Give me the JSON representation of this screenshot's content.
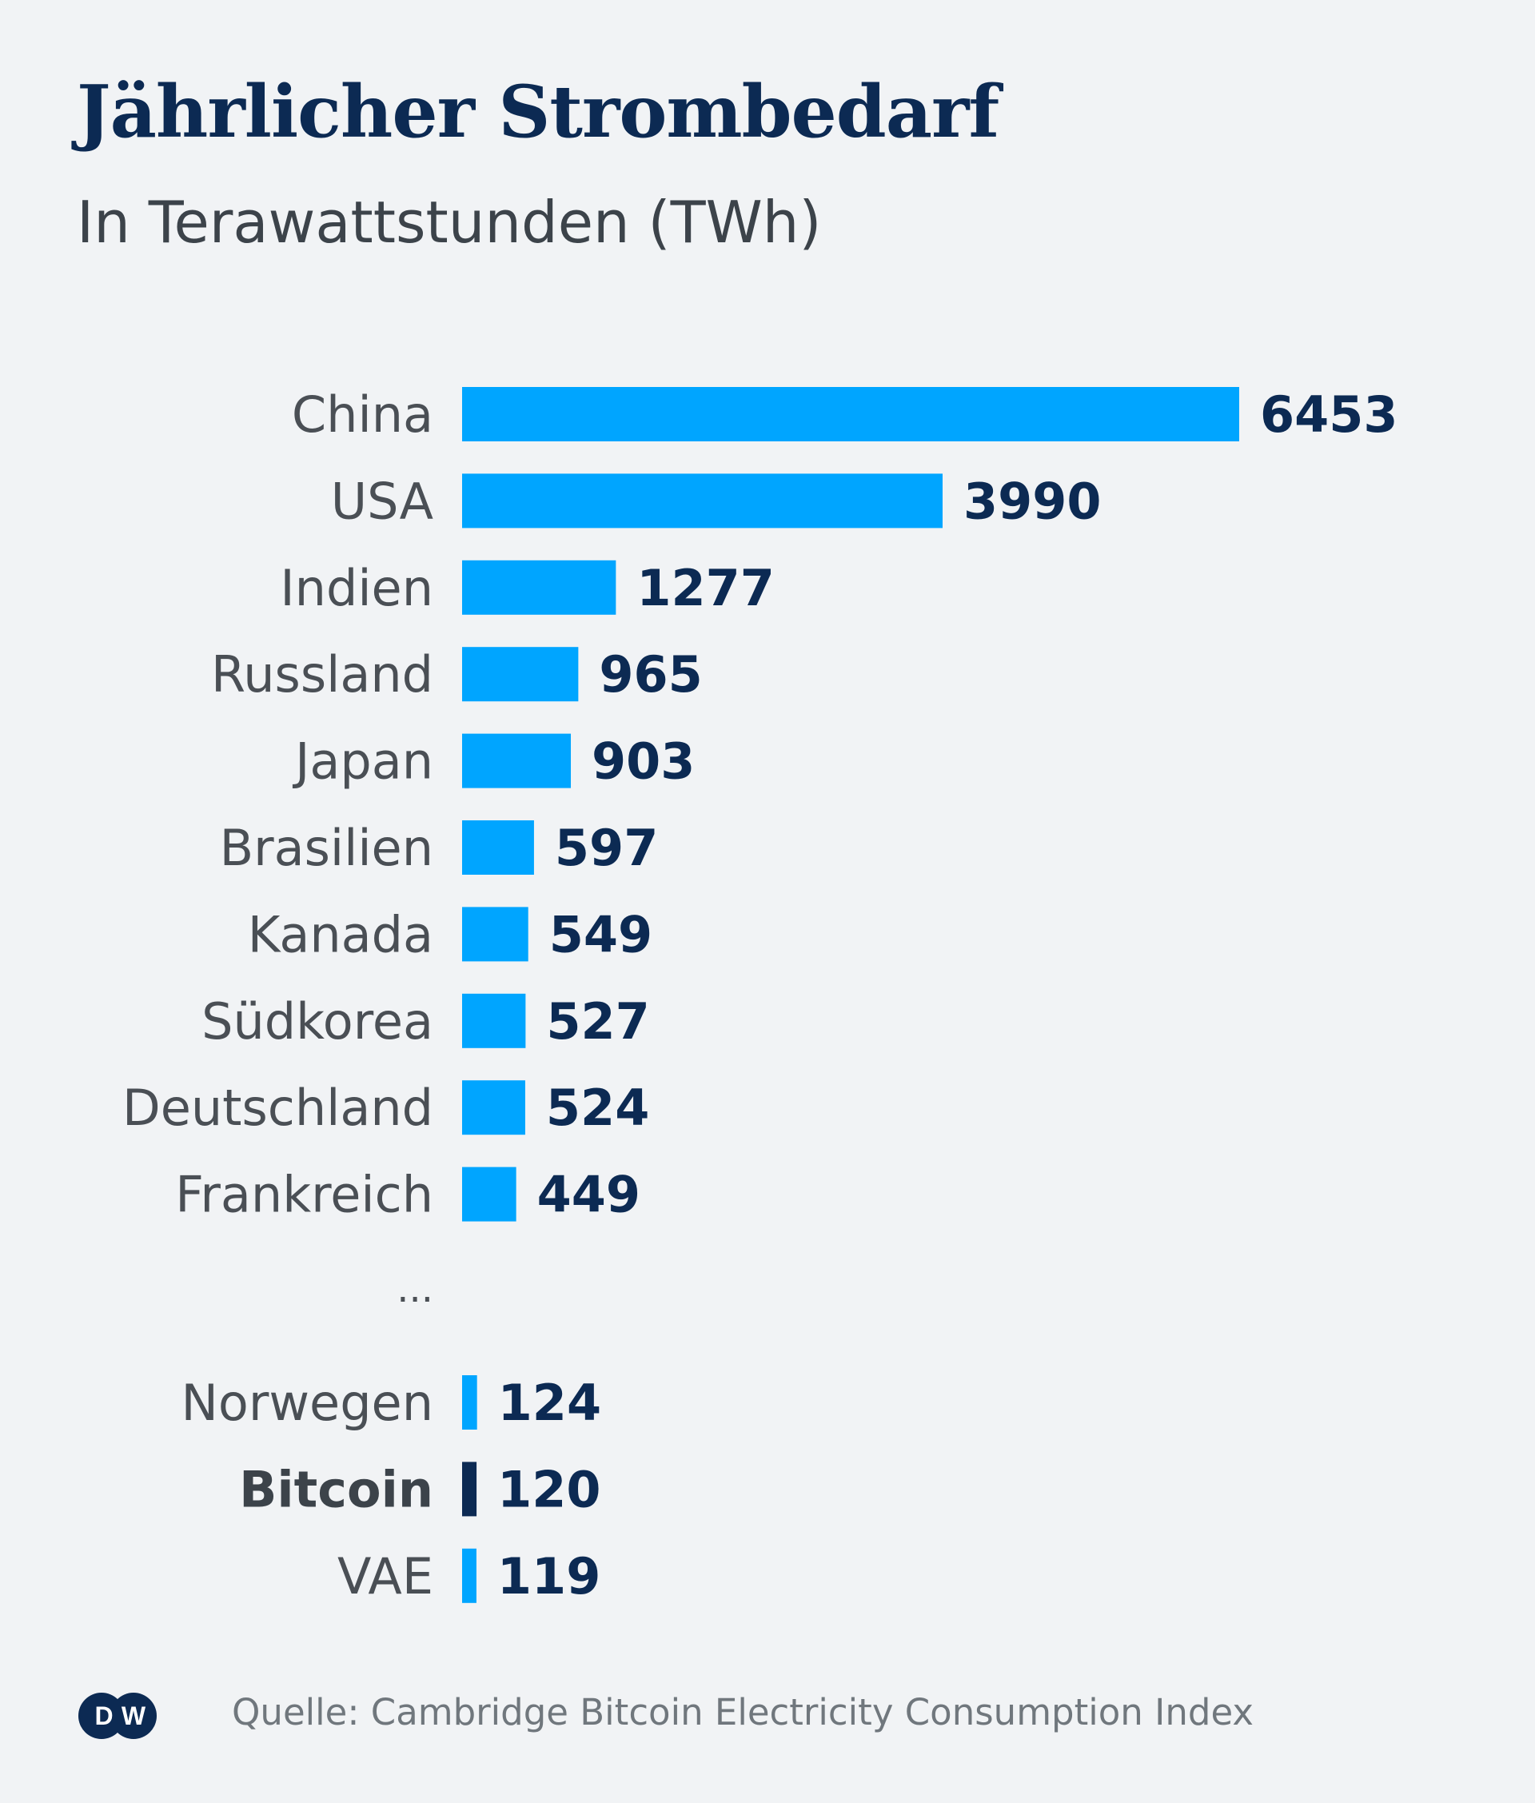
{
  "header": {
    "title": "Jährlicher Strombedarf",
    "subtitle": "In Terawattstunden (TWh)"
  },
  "chart_data": {
    "type": "bar",
    "orientation": "horizontal",
    "title": "Jährlicher Strombedarf",
    "subtitle": "In Terawattstunden (TWh)",
    "categories": [
      "China",
      "USA",
      "Indien",
      "Russland",
      "Japan",
      "Brasilien",
      "Kanada",
      "Südkorea",
      "Deutschland",
      "Frankreich",
      "Norwegen",
      "Bitcoin",
      "VAE"
    ],
    "values": [
      6453,
      3990,
      1277,
      965,
      903,
      597,
      549,
      527,
      524,
      449,
      124,
      120,
      119
    ],
    "highlight": "Bitcoin",
    "gap_marker": "...",
    "gap_after": "Frankreich",
    "grid": false,
    "legend": "none",
    "colors": {
      "bar": "#00a5ff",
      "highlight_bar": "#0c2a53",
      "value_text": "#0c2a53",
      "category_text": "#4a4f55"
    }
  },
  "footer": {
    "logo_text": "DW",
    "source": "Quelle: Cambridge Bitcoin Electricity Consumption Index"
  }
}
